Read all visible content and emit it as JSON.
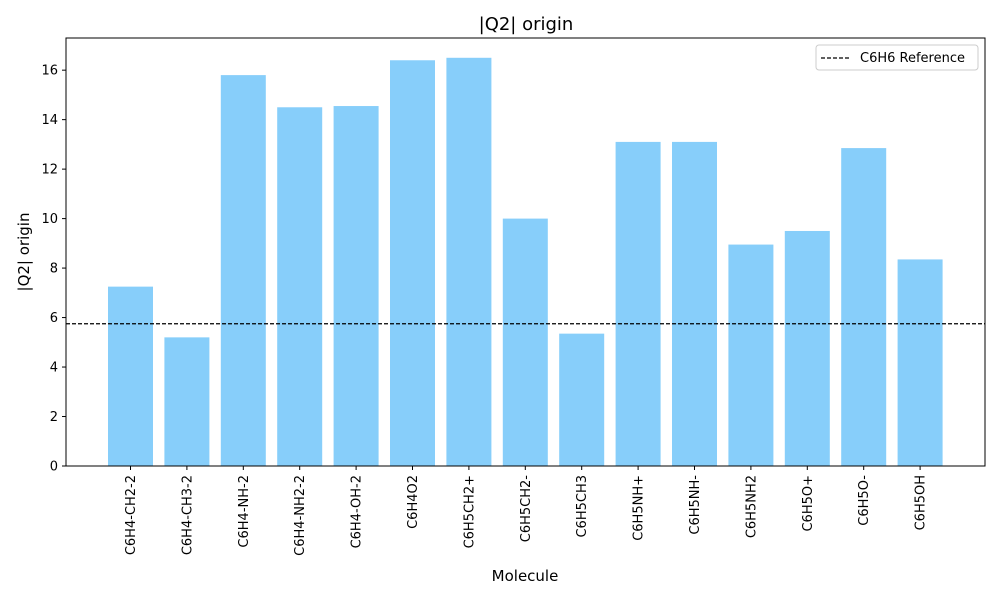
{
  "chart_data": {
    "type": "bar",
    "title": "|Q2| origin",
    "xlabel": "Molecule",
    "ylabel": "|Q2| origin",
    "categories": [
      "C6H4-CH2-2",
      "C6H4-CH3-2",
      "C6H4-NH-2",
      "C6H4-NH2-2",
      "C6H4-OH-2",
      "C6H4O2",
      "C6H5CH2+",
      "C6H5CH2-",
      "C6H5CH3",
      "C6H5NH+",
      "C6H5NH-",
      "C6H5NH2",
      "C6H5O+",
      "C6H5O-",
      "C6H5OH"
    ],
    "values": [
      7.25,
      5.2,
      15.8,
      14.5,
      14.55,
      16.4,
      16.5,
      10.0,
      5.35,
      13.1,
      13.1,
      8.95,
      9.5,
      12.85,
      8.35
    ],
    "ylim": [
      0,
      17.3
    ],
    "yticks": [
      0,
      2,
      4,
      6,
      8,
      10,
      12,
      14,
      16
    ],
    "grid": false,
    "legend_position": "top-right",
    "reference_line": {
      "label": "C6H6 Reference",
      "value": 5.75,
      "style": "dashed",
      "color": "#000000"
    },
    "bar_color": "#87CEFA"
  }
}
